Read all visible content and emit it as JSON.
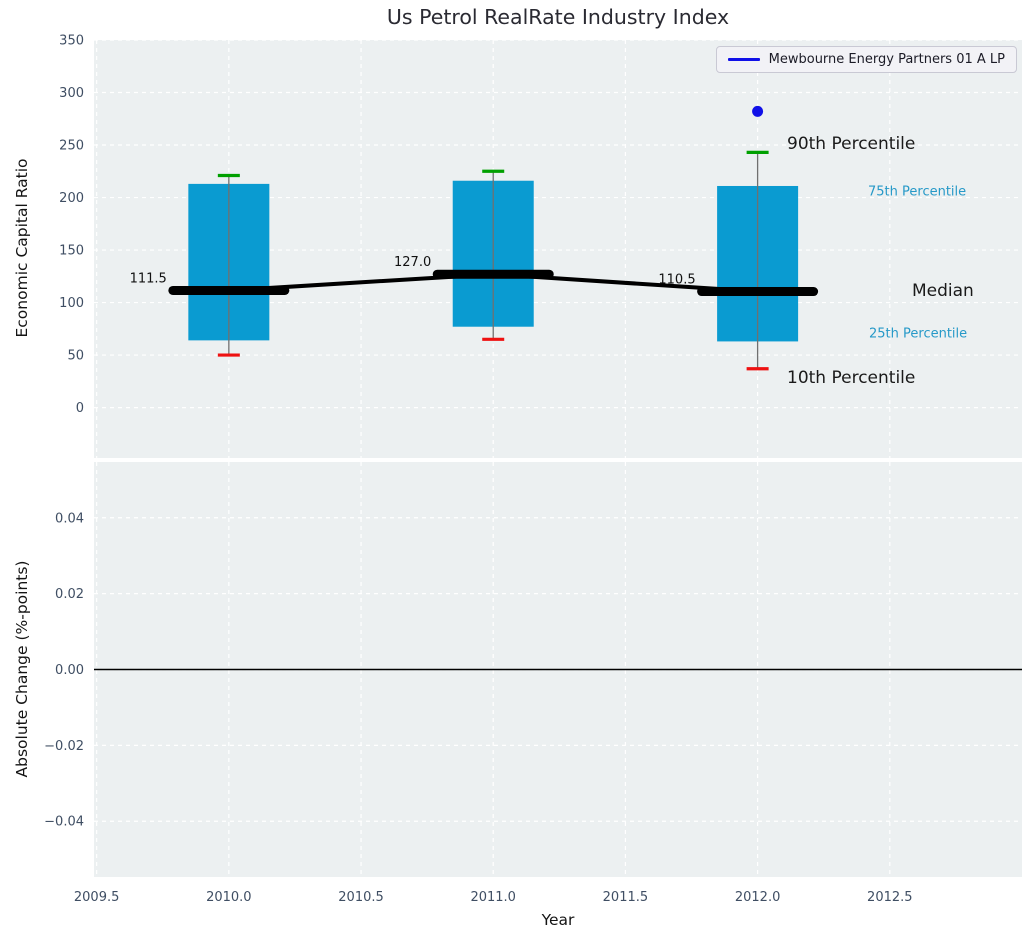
{
  "title": "Us Petrol RealRate Industry Index",
  "legend": {
    "label": "Mewbourne Energy Partners 01 A LP"
  },
  "colors": {
    "figure_bg": "#ffffff",
    "plot_bg": "#ecf0f1",
    "grid": "#ffffff",
    "box_fill": "#0a9bd1",
    "whisker": "#707070",
    "p90_cap": "#00a000",
    "p10_cap": "#ee1111",
    "median_line": "#000000",
    "company_point": "#1010e8",
    "legend_line": "#1010e8",
    "legend_bg": "#f2f2f6",
    "legend_border": "#c9c9d4",
    "legend_text": "#1b1b26",
    "tick_label": "#3f4e63",
    "percentile_text_teal": "#2699c8",
    "annotation_text_dark": "#1a1a1a",
    "title_text": "#2a2a32",
    "axis_label_text": "#141414",
    "median_label_text": "#111111",
    "zero_line": "#000000"
  },
  "chart_data": [
    {
      "type": "box",
      "title": "Us Petrol RealRate Industry Index",
      "ylabel": "Economic Capital Ratio",
      "x": [
        2010,
        2011,
        2012
      ],
      "percentiles": {
        "p10": [
          50,
          65,
          37
        ],
        "p25": [
          64,
          77,
          63
        ],
        "median": [
          111.5,
          127.0,
          110.5
        ],
        "p75": [
          213,
          216,
          211
        ],
        "p90": [
          221,
          225,
          243
        ]
      },
      "median_labels": [
        "111.5",
        "127.0",
        "110.5"
      ],
      "company_point": {
        "x": 2012,
        "y": 282,
        "name": "Mewbourne Energy Partners 01 A LP"
      },
      "ylim": [
        -48,
        350
      ],
      "yticks": [
        0,
        50,
        100,
        150,
        200,
        250,
        300,
        350
      ],
      "ytick_labels": [
        "0",
        "50",
        "100",
        "150",
        "200",
        "250",
        "300",
        "350"
      ],
      "xlim": [
        2009.49,
        2013.0
      ],
      "grid": true,
      "legend_position": "upper right",
      "annotations": [
        {
          "key": "p90",
          "label": "90th Percentile",
          "style": "dark",
          "size": 17
        },
        {
          "key": "p75",
          "label": "75th Percentile",
          "style": "teal",
          "size": 13
        },
        {
          "key": "median",
          "label": "Median",
          "style": "dark",
          "size": 17
        },
        {
          "key": "p25",
          "label": "25th Percentile",
          "style": "teal",
          "size": 13
        },
        {
          "key": "p10",
          "label": "10th Percentile",
          "style": "dark",
          "size": 17
        }
      ]
    },
    {
      "type": "line",
      "ylabel": "Absolute Change (%-points)",
      "xlabel": "Year",
      "series": [],
      "zero_line": 0.0,
      "ylim": [
        -0.0547,
        0.0547
      ],
      "yticks": [
        0.04,
        0.02,
        0.0,
        -0.02,
        -0.04
      ],
      "ytick_labels": [
        "0.04",
        "0.02",
        "0.00",
        "−0.02",
        "−0.04"
      ],
      "xlim": [
        2009.49,
        2013.0
      ],
      "xticks": [
        2009.5,
        2010.0,
        2010.5,
        2011.0,
        2011.5,
        2012.0,
        2012.5
      ],
      "xtick_labels": [
        "2009.5",
        "2010.0",
        "2010.5",
        "2011.0",
        "2011.5",
        "2012.0",
        "2012.5"
      ],
      "grid": true
    }
  ]
}
